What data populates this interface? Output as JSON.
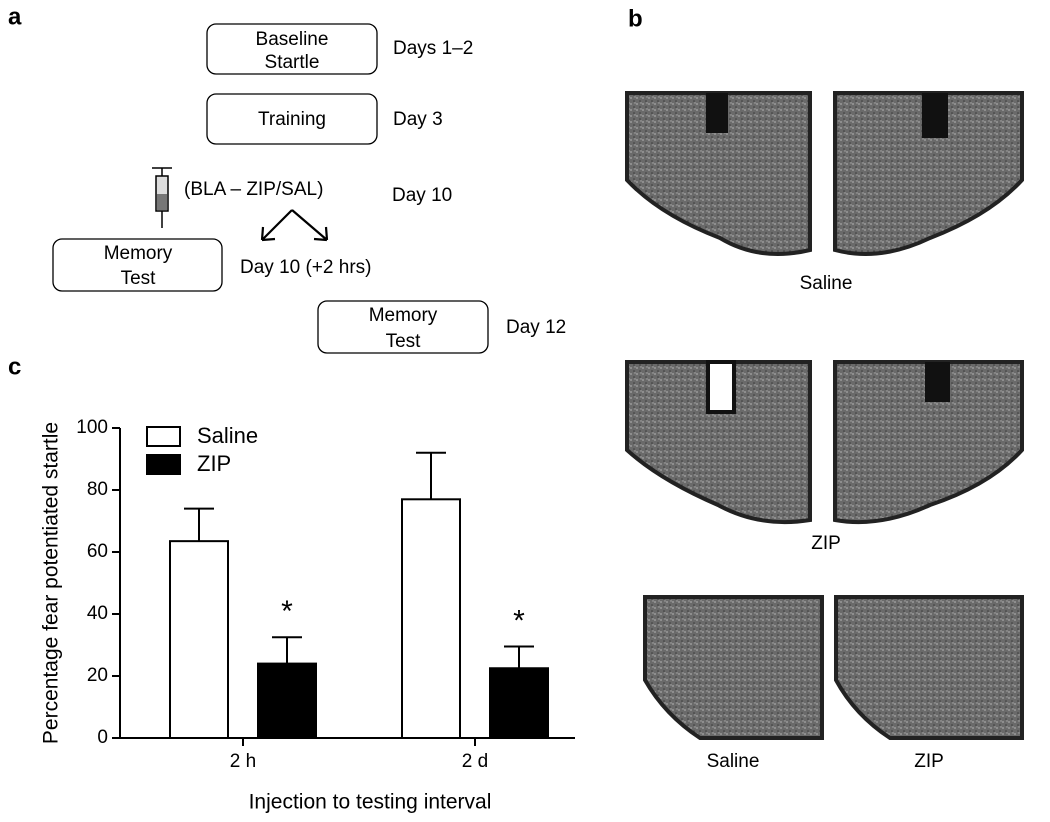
{
  "panel_labels": [
    "a",
    "b",
    "c"
  ],
  "diagram": {
    "steps": [
      {
        "lines": [
          "Baseline",
          "Startle"
        ],
        "time": "Days 1–2"
      },
      {
        "lines": [
          "Training"
        ],
        "time": "Day 3"
      }
    ],
    "injection": {
      "label": "(BLA – ZIP/SAL)",
      "time": "Day 10"
    },
    "tests": [
      {
        "lines": [
          "Memory",
          "Test"
        ],
        "time": "Day 10 (+2 hrs)"
      },
      {
        "lines": [
          "Memory",
          "Test"
        ],
        "time": "Day 12"
      }
    ]
  },
  "image_labels": [
    "Saline",
    "ZIP",
    "Saline",
    "ZIP"
  ],
  "chart_data": {
    "type": "bar",
    "y_label": "Percentage fear potentiated startle",
    "x_label": "Injection to testing interval",
    "categories": [
      "2 h",
      "2 d"
    ],
    "series": [
      {
        "name": "Saline",
        "color": "#ffffff",
        "values": [
          63.5,
          77
        ],
        "errors": [
          10.5,
          15
        ]
      },
      {
        "name": "ZIP",
        "color": "#000000",
        "values": [
          24,
          22.5
        ],
        "errors": [
          8.5,
          7
        ]
      }
    ],
    "annotations": [
      "*",
      "*"
    ],
    "ylim": [
      0,
      100
    ],
    "yticks": [
      0,
      20,
      40,
      60,
      80,
      100
    ],
    "legend": "upper left"
  }
}
